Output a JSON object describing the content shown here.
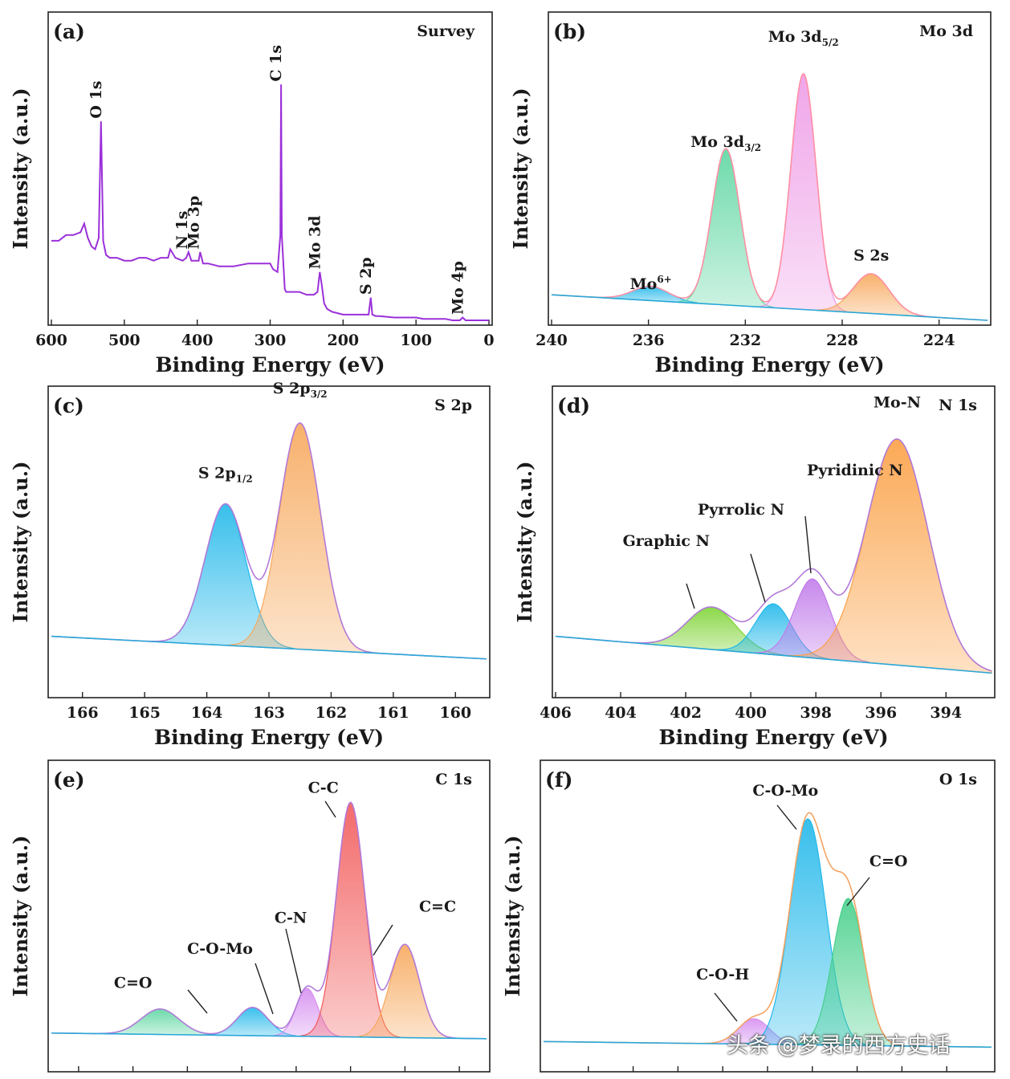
{
  "watermark": "头条 @梦录的西方史话",
  "chart_data": [
    {
      "type": "line",
      "panel": "(a)",
      "title": "Survey",
      "xlabel": "Binding Energy (eV)",
      "ylabel": "Intensity (a.u.)",
      "xlim": [
        600,
        0
      ],
      "ylim": [
        0,
        100
      ],
      "xticks": [
        600,
        500,
        400,
        300,
        200,
        100,
        0
      ],
      "color": "#9b30d9",
      "series": [
        {
          "name": "Survey",
          "x": [
            600,
            590,
            580,
            570,
            560,
            555,
            550,
            545,
            540,
            535,
            532,
            529,
            525,
            520,
            510,
            500,
            490,
            480,
            470,
            460,
            450,
            440,
            437,
            430,
            420,
            415,
            412,
            408,
            405,
            398,
            396,
            392,
            385,
            370,
            350,
            330,
            310,
            300,
            296,
            290,
            286,
            285,
            284,
            280,
            278,
            275,
            270,
            260,
            250,
            240,
            235,
            232,
            229,
            226,
            222,
            215,
            200,
            190,
            180,
            170,
            165,
            162,
            160,
            155,
            150,
            130,
            110,
            100,
            90,
            70,
            60,
            50,
            40,
            36,
            32,
            20,
            10,
            0
          ],
          "y": [
            28,
            28,
            30,
            30,
            31,
            34,
            29,
            26,
            25,
            29,
            70,
            28,
            23,
            22,
            22,
            21,
            21,
            22,
            22,
            21,
            22,
            22,
            25,
            22,
            21,
            22,
            24,
            21,
            21,
            21,
            24,
            20,
            20,
            19,
            19,
            20,
            20,
            20,
            18,
            17,
            30,
            83,
            30,
            11,
            10,
            10,
            10,
            10,
            9,
            9,
            10,
            17,
            12,
            6,
            4,
            3,
            2,
            2,
            2,
            2,
            2,
            8,
            2,
            1.5,
            1.5,
            1,
            1,
            1,
            0.5,
            0.5,
            0.5,
            0,
            0,
            1,
            0,
            0,
            0,
            0
          ]
        }
      ],
      "annotations": [
        {
          "text": "O 1s",
          "x": 532,
          "y": 71
        },
        {
          "text": "N 1s",
          "x": 414,
          "y": 25
        },
        {
          "text": "Mo 3p",
          "x": 398,
          "y": 25
        },
        {
          "text": "C 1s",
          "x": 285,
          "y": 84
        },
        {
          "text": "Mo 3d",
          "x": 232,
          "y": 18
        },
        {
          "text": "S 2p",
          "x": 162,
          "y": 9
        },
        {
          "text": "Mo 4p",
          "x": 36,
          "y": 2
        }
      ]
    },
    {
      "type": "area",
      "panel": "(b)",
      "title": "Mo 3d",
      "xlabel": "Binding Energy (eV)",
      "ylabel": "Intensity (a.u.)",
      "xlim": [
        240,
        222
      ],
      "ylim": [
        0,
        100
      ],
      "xticks": [
        240,
        236,
        232,
        228,
        224
      ],
      "baseline": {
        "x": [
          240,
          222
        ],
        "y": [
          9,
          0
        ]
      },
      "envelope_color": "#ff8fa3",
      "series": [
        {
          "name": "Mo6+",
          "center": 235.9,
          "height": 5,
          "sigma": 0.75,
          "color": "#22b8ea"
        },
        {
          "name": "Mo 3d3/2",
          "center": 232.8,
          "height": 55,
          "sigma": 0.58,
          "color": "#5ed6a2"
        },
        {
          "name": "Mo 3d5/2",
          "center": 229.6,
          "height": 83,
          "sigma": 0.52,
          "color": "#ee9be6"
        },
        {
          "name": "S 2s",
          "center": 226.8,
          "height": 14,
          "sigma": 0.75,
          "color": "#f7a85c"
        }
      ],
      "annotations": [
        {
          "text": "Mo",
          "sup": "6+",
          "x": 235.9,
          "y": 11
        },
        {
          "text": "Mo 3d",
          "sub": "3/2",
          "x": 232.8,
          "y": 61
        },
        {
          "text": "Mo 3d",
          "sub": "5/2",
          "x": 229.6,
          "y": 98
        },
        {
          "text": "S 2s",
          "x": 226.8,
          "y": 21
        }
      ]
    },
    {
      "type": "area",
      "panel": "(c)",
      "title": "S 2p",
      "xlabel": "Binding Energy (eV)",
      "ylabel": "Intensity (a.u.)",
      "xlim": [
        166.5,
        159.5
      ],
      "ylim": [
        0,
        100
      ],
      "xticks": [
        166,
        165,
        164,
        163,
        162,
        161,
        160
      ],
      "baseline": {
        "x": [
          166.5,
          159.5
        ],
        "y": [
          20,
          12
        ]
      },
      "envelope_color": "#b27ad9",
      "series": [
        {
          "name": "S 2p1/2",
          "center": 163.7,
          "height": 50,
          "sigma": 0.33,
          "color": "#22b8ea"
        },
        {
          "name": "S 2p3/2",
          "center": 162.5,
          "height": 80,
          "sigma": 0.33,
          "color": "#f7a85c"
        }
      ],
      "annotations": [
        {
          "text": "S 2p",
          "sub": "1/2",
          "x": 163.7,
          "y": 76
        },
        {
          "text": "S 2p",
          "sub": "3/2",
          "x": 162.5,
          "y": 106
        }
      ]
    },
    {
      "type": "area",
      "panel": "(d)",
      "title": "N 1s",
      "xlabel": "Binding Energy (eV)",
      "ylabel": "Intensity (a.u.)",
      "xlim": [
        406,
        392.6
      ],
      "ylim": [
        0,
        100
      ],
      "xticks": [
        406,
        404,
        402,
        400,
        398,
        396,
        394
      ],
      "baseline": {
        "x": [
          406,
          392.6
        ],
        "y": [
          20,
          7
        ]
      },
      "envelope_color": "#b27ad9",
      "series": [
        {
          "name": "Graphic N",
          "center": 401.2,
          "height": 15,
          "sigma": 0.75,
          "color": "#7fd436"
        },
        {
          "name": "Pyrrolic N",
          "center": 399.3,
          "height": 18,
          "sigma": 0.55,
          "color": "#22b8ea"
        },
        {
          "name": "Pyridinic N",
          "center": 398.1,
          "height": 28,
          "sigma": 0.55,
          "color": "#c17bea"
        },
        {
          "name": "Mo-N",
          "center": 395.5,
          "height": 80,
          "sigma": 0.95,
          "color": "#fba044"
        }
      ],
      "annotations": [
        {
          "text": "Graphic N",
          "x": 402.6,
          "y": 52
        },
        {
          "text": "Pyrrolic N",
          "x": 400.3,
          "y": 63
        },
        {
          "text": "Pyridinic N",
          "x": 396.8,
          "y": 77
        },
        {
          "text": "Mo-N",
          "x": 395.5,
          "y": 101
        }
      ]
    },
    {
      "type": "area",
      "panel": "(e)",
      "title": "C 1s",
      "xlabel": "",
      "ylabel": "Intensity (a.u.)",
      "xlim": [
        290.5,
        282.5
      ],
      "ylim": [
        0,
        100
      ],
      "xticks": [
        290,
        289,
        288,
        287,
        286,
        285,
        284,
        283
      ],
      "xticklabels_visible": false,
      "baseline": {
        "x": [
          290.5,
          282.5
        ],
        "y": [
          12,
          10
        ]
      },
      "envelope_color": "#b27ad9",
      "series": [
        {
          "name": "C=O",
          "center": 288.5,
          "height": 9,
          "sigma": 0.35,
          "color": "#5ed6a2"
        },
        {
          "name": "C-O-Mo",
          "center": 286.8,
          "height": 10,
          "sigma": 0.28,
          "color": "#22b8ea"
        },
        {
          "name": "C-N",
          "center": 285.8,
          "height": 17,
          "sigma": 0.2,
          "color": "#d68ff0"
        },
        {
          "name": "C-C",
          "center": 285.0,
          "height": 83,
          "sigma": 0.26,
          "color": "#f25a5a"
        },
        {
          "name": "C=C",
          "center": 284.0,
          "height": 33,
          "sigma": 0.27,
          "color": "#f7a85c"
        }
      ],
      "annotations": [
        {
          "text": "C=O",
          "x": 289.0,
          "y": 28
        },
        {
          "text": "C-O-Mo",
          "x": 287.4,
          "y": 40
        },
        {
          "text": "C-N",
          "x": 286.1,
          "y": 51
        },
        {
          "text": "C-C",
          "x": 285.5,
          "y": 97
        },
        {
          "text": "C=C",
          "x": 283.4,
          "y": 55
        }
      ]
    },
    {
      "type": "area",
      "panel": "(f)",
      "title": "O 1s",
      "xlabel": "",
      "ylabel": "Intensity (a.u.)",
      "xlim": [
        537,
        527
      ],
      "ylim": [
        0,
        100
      ],
      "xticks": [
        536,
        535,
        534,
        533,
        532,
        531,
        530,
        529,
        528
      ],
      "xticklabels_visible": false,
      "baseline": {
        "x": [
          537,
          527
        ],
        "y": [
          9,
          7
        ]
      },
      "envelope_color": "#f4a465",
      "series": [
        {
          "name": "C-O-H",
          "center": 532.3,
          "height": 9,
          "sigma": 0.35,
          "color": "#d68ff0"
        },
        {
          "name": "C-O-Mo",
          "center": 531.1,
          "height": 80,
          "sigma": 0.4,
          "color": "#22b8ea"
        },
        {
          "name": "C=O",
          "center": 530.2,
          "height": 52,
          "sigma": 0.35,
          "color": "#47d08b"
        }
      ],
      "annotations": [
        {
          "text": "C-O-H",
          "x": 533.0,
          "y": 31
        },
        {
          "text": "C-O-Mo",
          "x": 531.6,
          "y": 96
        },
        {
          "text": "C=O",
          "x": 529.3,
          "y": 71
        }
      ]
    }
  ]
}
